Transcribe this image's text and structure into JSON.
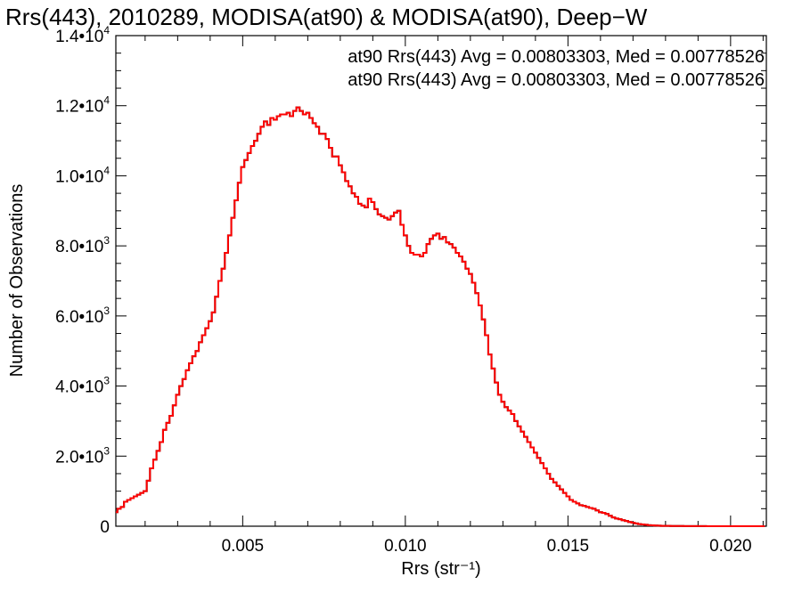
{
  "chart_data": {
    "type": "line",
    "step": true,
    "title": "Rrs(443), 2010289, MODISA(at90) & MODISA(at90), Deep−W",
    "xlabel": "Rrs (str⁻¹)",
    "ylabel": "Number of Observations",
    "xlim": [
      0.0011,
      0.0211
    ],
    "ylim": [
      0,
      14000
    ],
    "x_ticks": [
      {
        "value": 0.005,
        "label": "0.005"
      },
      {
        "value": 0.01,
        "label": "0.010"
      },
      {
        "value": 0.015,
        "label": "0.015"
      },
      {
        "value": 0.02,
        "label": "0.020"
      }
    ],
    "y_ticks": [
      {
        "value": 0,
        "mant": "0",
        "exp": ""
      },
      {
        "value": 2000,
        "mant": "2.0•10",
        "exp": "3"
      },
      {
        "value": 4000,
        "mant": "4.0•10",
        "exp": "3"
      },
      {
        "value": 6000,
        "mant": "6.0•10",
        "exp": "3"
      },
      {
        "value": 8000,
        "mant": "8.0•10",
        "exp": "3"
      },
      {
        "value": 10000,
        "mant": "1.0•10",
        "exp": "4"
      },
      {
        "value": 12000,
        "mant": "1.2•10",
        "exp": "4"
      },
      {
        "value": 14000,
        "mant": "1.4•10",
        "exp": "4"
      }
    ],
    "annotations": [
      {
        "text": "at90 Rrs(443) Avg = 0.00803303, Med = 0.00778526",
        "color": "#000000"
      },
      {
        "text": "at90 Rrs(443) Avg = 0.00803303, Med = 0.00778526",
        "color": "#ff0000"
      }
    ],
    "series": [
      {
        "color": "#000000",
        "x": [
          0.0011,
          0.0012,
          0.0013,
          0.0014,
          0.0015,
          0.0016,
          0.0017,
          0.0018,
          0.0019,
          0.002,
          0.0021,
          0.0022,
          0.0023,
          0.0024,
          0.0025,
          0.0026,
          0.0027,
          0.0028,
          0.0029,
          0.003,
          0.0031,
          0.0032,
          0.0033,
          0.0034,
          0.0035,
          0.0036,
          0.0037,
          0.0038,
          0.0039,
          0.004,
          0.0041,
          0.0042,
          0.0043,
          0.0044,
          0.0045,
          0.0046,
          0.0047,
          0.0048,
          0.0049,
          0.005,
          0.0051,
          0.0052,
          0.0053,
          0.0054,
          0.0055,
          0.0056,
          0.0057,
          0.0058,
          0.0059,
          0.006,
          0.0061,
          0.0062,
          0.0063,
          0.0064,
          0.0065,
          0.0066,
          0.0067,
          0.0068,
          0.0069,
          0.007,
          0.0071,
          0.0072,
          0.0073,
          0.0074,
          0.0075,
          0.0076,
          0.0077,
          0.0078,
          0.0079,
          0.008,
          0.0081,
          0.0082,
          0.0083,
          0.0084,
          0.0085,
          0.0086,
          0.0087,
          0.0088,
          0.0089,
          0.009,
          0.0091,
          0.0092,
          0.0093,
          0.0094,
          0.0095,
          0.0096,
          0.0097,
          0.0098,
          0.0099,
          0.01,
          0.0101,
          0.0102,
          0.0103,
          0.0104,
          0.0105,
          0.0106,
          0.0107,
          0.0108,
          0.0109,
          0.011,
          0.0111,
          0.0112,
          0.0113,
          0.0114,
          0.0115,
          0.0116,
          0.0117,
          0.0118,
          0.0119,
          0.012,
          0.0121,
          0.0122,
          0.0123,
          0.0124,
          0.0125,
          0.0126,
          0.0127,
          0.0128,
          0.0129,
          0.013,
          0.0131,
          0.0132,
          0.0133,
          0.0134,
          0.0135,
          0.0136,
          0.0137,
          0.0138,
          0.0139,
          0.014,
          0.0141,
          0.0142,
          0.0143,
          0.0144,
          0.0145,
          0.0146,
          0.0147,
          0.0148,
          0.0149,
          0.015,
          0.0151,
          0.0152,
          0.0153,
          0.0154,
          0.0155,
          0.0156,
          0.0157,
          0.0158,
          0.0159,
          0.016,
          0.0161,
          0.0162,
          0.0163,
          0.0164,
          0.0165,
          0.0166,
          0.0167,
          0.0168,
          0.0169,
          0.017,
          0.0171,
          0.0172,
          0.0173,
          0.0174,
          0.0175,
          0.0176,
          0.0177,
          0.0178,
          0.0179,
          0.018,
          0.0181,
          0.0182,
          0.0183,
          0.0184,
          0.0185,
          0.0186,
          0.0187,
          0.0188,
          0.0189,
          0.019,
          0.0191,
          0.0192,
          0.0193,
          0.0194,
          0.0195,
          0.0196,
          0.0197,
          0.0198,
          0.0199,
          0.02,
          0.0201,
          0.0202,
          0.0203,
          0.0204,
          0.0205,
          0.0206,
          0.0207,
          0.0208,
          0.0209,
          0.021
        ],
        "y": [
          400,
          500,
          550,
          700,
          750,
          800,
          850,
          900,
          950,
          1000,
          1300,
          1650,
          1900,
          2150,
          2400,
          2750,
          2950,
          3150,
          3450,
          3750,
          4000,
          4200,
          4450,
          4650,
          4850,
          5000,
          5250,
          5450,
          5650,
          5850,
          6100,
          6550,
          7000,
          7350,
          7800,
          8300,
          8800,
          9300,
          9800,
          10250,
          10450,
          10650,
          10850,
          11000,
          11200,
          11400,
          11550,
          11450,
          11650,
          11600,
          11700,
          11750,
          11750,
          11800,
          11700,
          11850,
          11950,
          11850,
          11750,
          11800,
          11650,
          11500,
          11400,
          11200,
          11200,
          11050,
          10800,
          10550,
          10550,
          10300,
          10100,
          9850,
          9700,
          9500,
          9400,
          9200,
          9150,
          9100,
          9350,
          9250,
          9050,
          8900,
          8850,
          8800,
          8750,
          8850,
          8950,
          9000,
          8600,
          8300,
          8000,
          7800,
          7750,
          7750,
          7700,
          7800,
          8050,
          8200,
          8300,
          8350,
          8200,
          8250,
          8100,
          8050,
          7950,
          7800,
          7700,
          7550,
          7350,
          7200,
          6950,
          6650,
          6300,
          5900,
          5450,
          4900,
          4500,
          4100,
          3750,
          3550,
          3400,
          3300,
          3200,
          3000,
          2850,
          2700,
          2550,
          2400,
          2250,
          2100,
          1950,
          1800,
          1650,
          1500,
          1350,
          1250,
          1150,
          1050,
          950,
          850,
          750,
          700,
          650,
          600,
          580,
          550,
          520,
          500,
          450,
          400,
          380,
          350,
          300,
          250,
          220,
          200,
          170,
          150,
          120,
          100,
          80,
          60,
          50,
          40,
          30,
          25,
          20,
          15,
          10,
          10,
          10,
          8,
          6,
          5,
          5,
          4,
          4,
          3,
          3,
          2,
          2,
          2,
          1,
          1,
          1,
          1,
          1,
          1,
          1,
          0,
          0,
          0,
          0,
          0,
          0,
          0,
          0,
          0,
          0,
          0
        ]
      },
      {
        "color": "#ff0000",
        "x": [
          0.0011,
          0.0012,
          0.0013,
          0.0014,
          0.0015,
          0.0016,
          0.0017,
          0.0018,
          0.0019,
          0.002,
          0.0021,
          0.0022,
          0.0023,
          0.0024,
          0.0025,
          0.0026,
          0.0027,
          0.0028,
          0.0029,
          0.003,
          0.0031,
          0.0032,
          0.0033,
          0.0034,
          0.0035,
          0.0036,
          0.0037,
          0.0038,
          0.0039,
          0.004,
          0.0041,
          0.0042,
          0.0043,
          0.0044,
          0.0045,
          0.0046,
          0.0047,
          0.0048,
          0.0049,
          0.005,
          0.0051,
          0.0052,
          0.0053,
          0.0054,
          0.0055,
          0.0056,
          0.0057,
          0.0058,
          0.0059,
          0.006,
          0.0061,
          0.0062,
          0.0063,
          0.0064,
          0.0065,
          0.0066,
          0.0067,
          0.0068,
          0.0069,
          0.007,
          0.0071,
          0.0072,
          0.0073,
          0.0074,
          0.0075,
          0.0076,
          0.0077,
          0.0078,
          0.0079,
          0.008,
          0.0081,
          0.0082,
          0.0083,
          0.0084,
          0.0085,
          0.0086,
          0.0087,
          0.0088,
          0.0089,
          0.009,
          0.0091,
          0.0092,
          0.0093,
          0.0094,
          0.0095,
          0.0096,
          0.0097,
          0.0098,
          0.0099,
          0.01,
          0.0101,
          0.0102,
          0.0103,
          0.0104,
          0.0105,
          0.0106,
          0.0107,
          0.0108,
          0.0109,
          0.011,
          0.0111,
          0.0112,
          0.0113,
          0.0114,
          0.0115,
          0.0116,
          0.0117,
          0.0118,
          0.0119,
          0.012,
          0.0121,
          0.0122,
          0.0123,
          0.0124,
          0.0125,
          0.0126,
          0.0127,
          0.0128,
          0.0129,
          0.013,
          0.0131,
          0.0132,
          0.0133,
          0.0134,
          0.0135,
          0.0136,
          0.0137,
          0.0138,
          0.0139,
          0.014,
          0.0141,
          0.0142,
          0.0143,
          0.0144,
          0.0145,
          0.0146,
          0.0147,
          0.0148,
          0.0149,
          0.015,
          0.0151,
          0.0152,
          0.0153,
          0.0154,
          0.0155,
          0.0156,
          0.0157,
          0.0158,
          0.0159,
          0.016,
          0.0161,
          0.0162,
          0.0163,
          0.0164,
          0.0165,
          0.0166,
          0.0167,
          0.0168,
          0.0169,
          0.017,
          0.0171,
          0.0172,
          0.0173,
          0.0174,
          0.0175,
          0.0176,
          0.0177,
          0.0178,
          0.0179,
          0.018,
          0.0181,
          0.0182,
          0.0183,
          0.0184,
          0.0185,
          0.0186,
          0.0187,
          0.0188,
          0.0189,
          0.019,
          0.0191,
          0.0192,
          0.0193,
          0.0194,
          0.0195,
          0.0196,
          0.0197,
          0.0198,
          0.0199,
          0.02,
          0.0201,
          0.0202,
          0.0203,
          0.0204,
          0.0205,
          0.0206,
          0.0207,
          0.0208,
          0.0209,
          0.021
        ],
        "y": [
          400,
          500,
          550,
          700,
          750,
          800,
          850,
          900,
          950,
          1000,
          1300,
          1650,
          1900,
          2150,
          2400,
          2750,
          2950,
          3150,
          3450,
          3750,
          4000,
          4200,
          4450,
          4650,
          4850,
          5000,
          5250,
          5450,
          5650,
          5850,
          6100,
          6550,
          7000,
          7350,
          7800,
          8300,
          8800,
          9300,
          9800,
          10250,
          10450,
          10650,
          10850,
          11000,
          11200,
          11400,
          11550,
          11450,
          11650,
          11600,
          11700,
          11750,
          11750,
          11800,
          11700,
          11850,
          11950,
          11850,
          11750,
          11800,
          11650,
          11500,
          11400,
          11200,
          11200,
          11050,
          10800,
          10550,
          10550,
          10300,
          10100,
          9850,
          9700,
          9500,
          9400,
          9200,
          9150,
          9100,
          9350,
          9250,
          9050,
          8900,
          8850,
          8800,
          8750,
          8850,
          8950,
          9000,
          8600,
          8300,
          8000,
          7800,
          7750,
          7750,
          7700,
          7800,
          8050,
          8200,
          8300,
          8350,
          8200,
          8250,
          8100,
          8050,
          7950,
          7800,
          7700,
          7550,
          7350,
          7200,
          6950,
          6650,
          6300,
          5900,
          5450,
          4900,
          4500,
          4100,
          3750,
          3550,
          3400,
          3300,
          3200,
          3000,
          2850,
          2700,
          2550,
          2400,
          2250,
          2100,
          1950,
          1800,
          1650,
          1500,
          1350,
          1250,
          1150,
          1050,
          950,
          850,
          750,
          700,
          650,
          600,
          580,
          550,
          520,
          500,
          450,
          400,
          380,
          350,
          300,
          250,
          220,
          200,
          170,
          150,
          120,
          100,
          80,
          60,
          50,
          40,
          30,
          25,
          20,
          15,
          10,
          10,
          10,
          8,
          6,
          5,
          5,
          4,
          4,
          3,
          3,
          2,
          2,
          2,
          1,
          1,
          1,
          1,
          1,
          1,
          1,
          0,
          0,
          0,
          0,
          0,
          0,
          0,
          0,
          0,
          0,
          0
        ]
      }
    ]
  }
}
